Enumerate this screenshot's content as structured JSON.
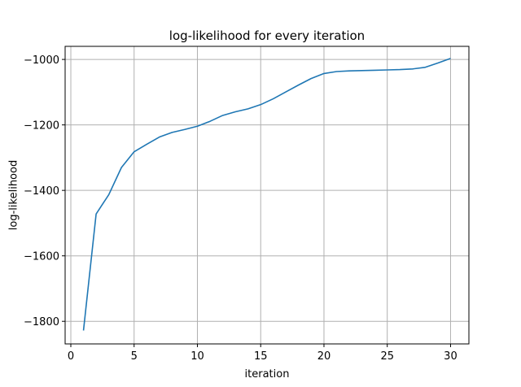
{
  "chart_data": {
    "type": "line",
    "title": "log-likelihood for every iteration",
    "xlabel": "iteration",
    "ylabel": "log-likelihood",
    "xlim": [
      -0.45,
      31.45
    ],
    "ylim": [
      -1869,
      -960
    ],
    "xticks": [
      0,
      5,
      10,
      15,
      20,
      25,
      30
    ],
    "yticks": [
      -1800,
      -1600,
      -1400,
      -1200,
      -1000
    ],
    "grid": true,
    "series": [
      {
        "color": "#1f77b4",
        "x": [
          1,
          2,
          3,
          4,
          5,
          6,
          7,
          8,
          9,
          10,
          11,
          12,
          13,
          14,
          15,
          16,
          17,
          18,
          19,
          20,
          21,
          22,
          23,
          24,
          25,
          26,
          27,
          28,
          29,
          30
        ],
        "y": [
          -1828,
          -1472,
          -1413,
          -1330,
          -1282,
          -1259,
          -1237,
          -1223,
          -1214,
          -1204,
          -1189,
          -1171,
          -1160,
          -1151,
          -1138,
          -1120,
          -1099,
          -1078,
          -1058,
          -1043,
          -1037,
          -1035,
          -1034,
          -1033,
          -1032,
          -1031,
          -1029,
          -1024,
          -1011,
          -997
        ]
      }
    ]
  }
}
